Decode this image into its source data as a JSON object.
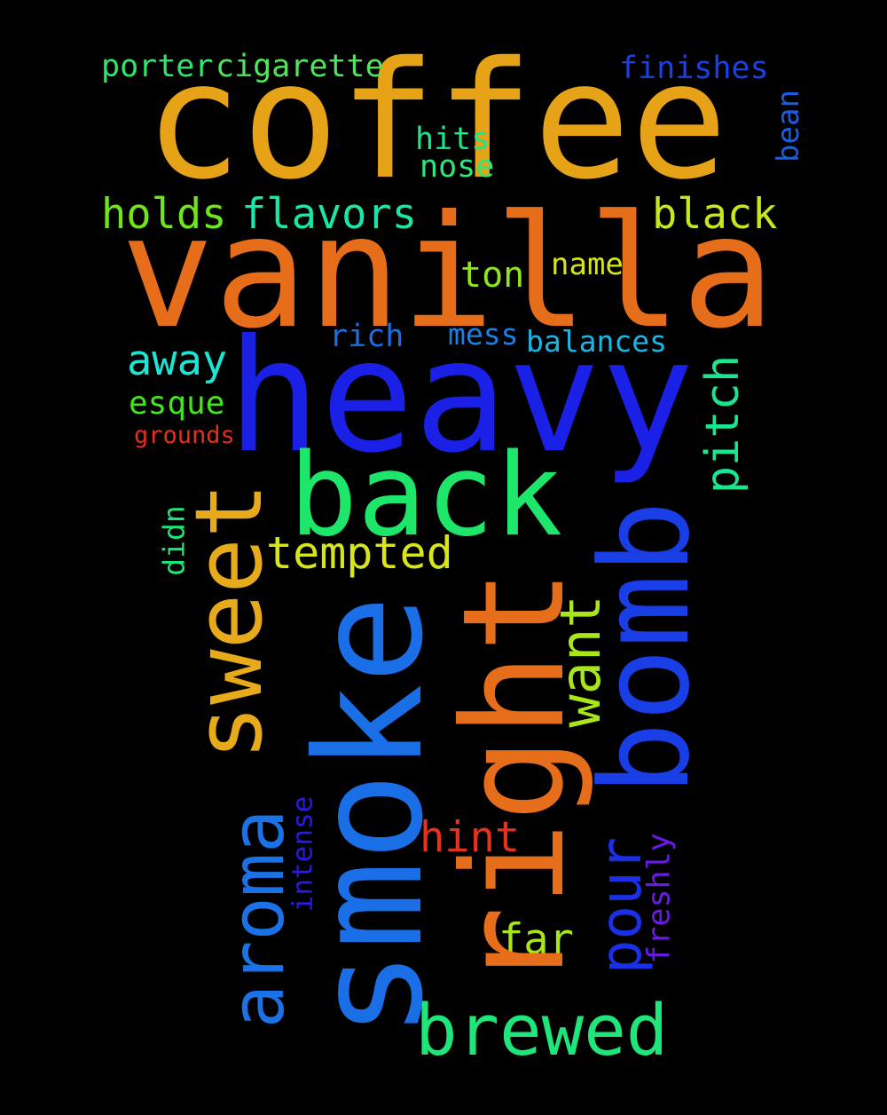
{
  "words": {
    "coffee": {
      "text": "coffee",
      "color": "#e6a317"
    },
    "vanilla": {
      "text": "vanilla",
      "color": "#e66e1a"
    },
    "heavy": {
      "text": "heavy",
      "color": "#1a20e6"
    },
    "back": {
      "text": "back",
      "color": "#1ee66a"
    },
    "sweet": {
      "text": "sweet",
      "color": "#e6aa1a"
    },
    "smoke": {
      "text": "smoke",
      "color": "#1a6ee6"
    },
    "right": {
      "text": "right",
      "color": "#e66e1a"
    },
    "bomb": {
      "text": "bomb",
      "color": "#1a3ee6"
    },
    "aroma": {
      "text": "aroma",
      "color": "#1a72e6"
    },
    "brewed": {
      "text": "brewed",
      "color": "#1ee67a"
    },
    "pour": {
      "text": "pour",
      "color": "#1a30e6"
    },
    "want": {
      "text": "want",
      "color": "#a8e61a"
    },
    "pitch": {
      "text": "pitch",
      "color": "#1ae690"
    },
    "porter": {
      "text": "porter",
      "color": "#2ee66a"
    },
    "cigarette": {
      "text": "cigarette",
      "color": "#4ee65a"
    },
    "finishes": {
      "text": "finishes",
      "color": "#1a40e6"
    },
    "bean": {
      "text": "bean",
      "color": "#1a5ee6"
    },
    "hits": {
      "text": "hits",
      "color": "#1ae68a"
    },
    "nose": {
      "text": "nose",
      "color": "#2ee67a"
    },
    "holds": {
      "text": "holds",
      "color": "#6ee61a"
    },
    "flavors": {
      "text": "flavors",
      "color": "#1ae6a8"
    },
    "black": {
      "text": "black",
      "color": "#c8e61a"
    },
    "ton": {
      "text": "ton",
      "color": "#8ee61a"
    },
    "name": {
      "text": "name",
      "color": "#d6e61a"
    },
    "rich": {
      "text": "rich",
      "color": "#1a6ee6"
    },
    "mess": {
      "text": "mess",
      "color": "#1a82e6"
    },
    "balances": {
      "text": "balances",
      "color": "#1ab6e6"
    },
    "away": {
      "text": "away",
      "color": "#1ae6d6"
    },
    "esque": {
      "text": "esque",
      "color": "#3ee61a"
    },
    "grounds": {
      "text": "grounds",
      "color": "#e62e1a"
    },
    "tempted": {
      "text": "tempted",
      "color": "#d6e61a"
    },
    "didn": {
      "text": "didn",
      "color": "#1ae67a"
    },
    "hint": {
      "text": "hint",
      "color": "#e6321a"
    },
    "intense": {
      "text": "intense",
      "color": "#2a1ae6"
    },
    "freshly": {
      "text": "freshly",
      "color": "#6a1ae6"
    },
    "far": {
      "text": "far",
      "color": "#a8e61a"
    }
  }
}
